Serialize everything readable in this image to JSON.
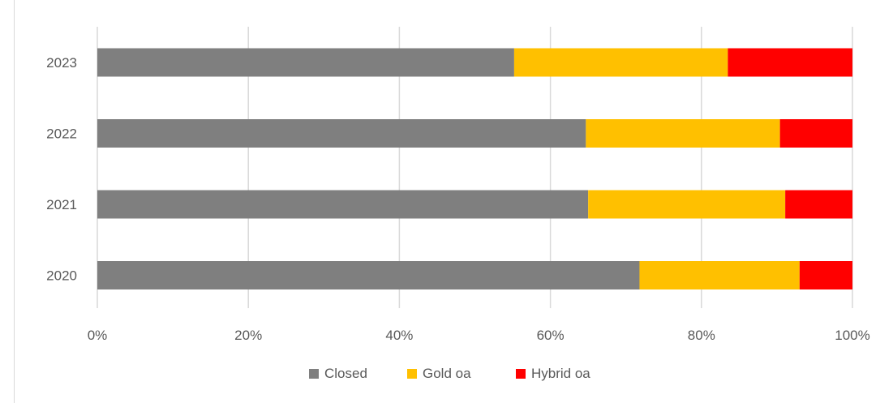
{
  "chart_data": {
    "type": "bar",
    "orientation": "horizontal",
    "stacked": true,
    "percent_stacked": true,
    "categories": [
      "2023",
      "2022",
      "2021",
      "2020"
    ],
    "series": [
      {
        "name": "Closed",
        "values": [
          55.2,
          64.7,
          65.0,
          71.8
        ],
        "color": "#7f7f7f"
      },
      {
        "name": "Gold oa",
        "values": [
          28.3,
          25.7,
          26.1,
          21.2
        ],
        "color": "#ffc000"
      },
      {
        "name": "Hybrid oa",
        "values": [
          16.5,
          9.6,
          8.9,
          7.0
        ],
        "color": "#ff0000"
      }
    ],
    "x_ticks": [
      "0%",
      "20%",
      "40%",
      "60%",
      "80%",
      "100%"
    ],
    "xlim": [
      0,
      100
    ],
    "grid": "vertical",
    "legend_position": "bottom",
    "title": "",
    "xlabel": "",
    "ylabel": ""
  }
}
